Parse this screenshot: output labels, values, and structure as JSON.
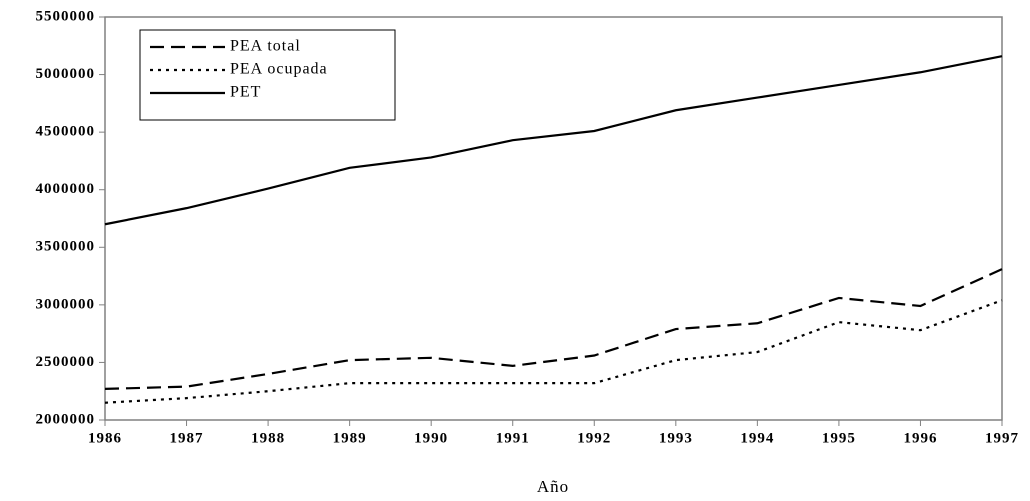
{
  "chart_data": {
    "type": "line",
    "x_label": "Año",
    "x": [
      1986,
      1987,
      1988,
      1989,
      1990,
      1991,
      1992,
      1993,
      1994,
      1995,
      1996,
      1997
    ],
    "series": [
      {
        "name": "PEA total",
        "color": "#000000",
        "dash": "dashed",
        "values": [
          2270000,
          2290000,
          2400000,
          2520000,
          2540000,
          2470000,
          2560000,
          2790000,
          2840000,
          3060000,
          2990000,
          3310000
        ]
      },
      {
        "name": "PEA ocupada",
        "color": "#000000",
        "dash": "dotted",
        "values": [
          2150000,
          2190000,
          2250000,
          2320000,
          2320000,
          2320000,
          2320000,
          2520000,
          2590000,
          2850000,
          2780000,
          3040000
        ]
      },
      {
        "name": "PET",
        "color": "#000000",
        "dash": "solid",
        "values": [
          3700000,
          3840000,
          4010000,
          4190000,
          4280000,
          4430000,
          4510000,
          4690000,
          4800000,
          4910000,
          5020000,
          5160000
        ]
      }
    ],
    "xlim": [
      1986,
      1997
    ],
    "xticks": [
      1986,
      1987,
      1988,
      1989,
      1990,
      1991,
      1992,
      1993,
      1994,
      1995,
      1996,
      1997
    ],
    "ylim": [
      2000000,
      5500000
    ],
    "yticks": [
      2000000,
      2500000,
      3000000,
      3500000,
      4000000,
      4500000,
      5000000,
      5500000
    ],
    "legend": "top-left"
  }
}
